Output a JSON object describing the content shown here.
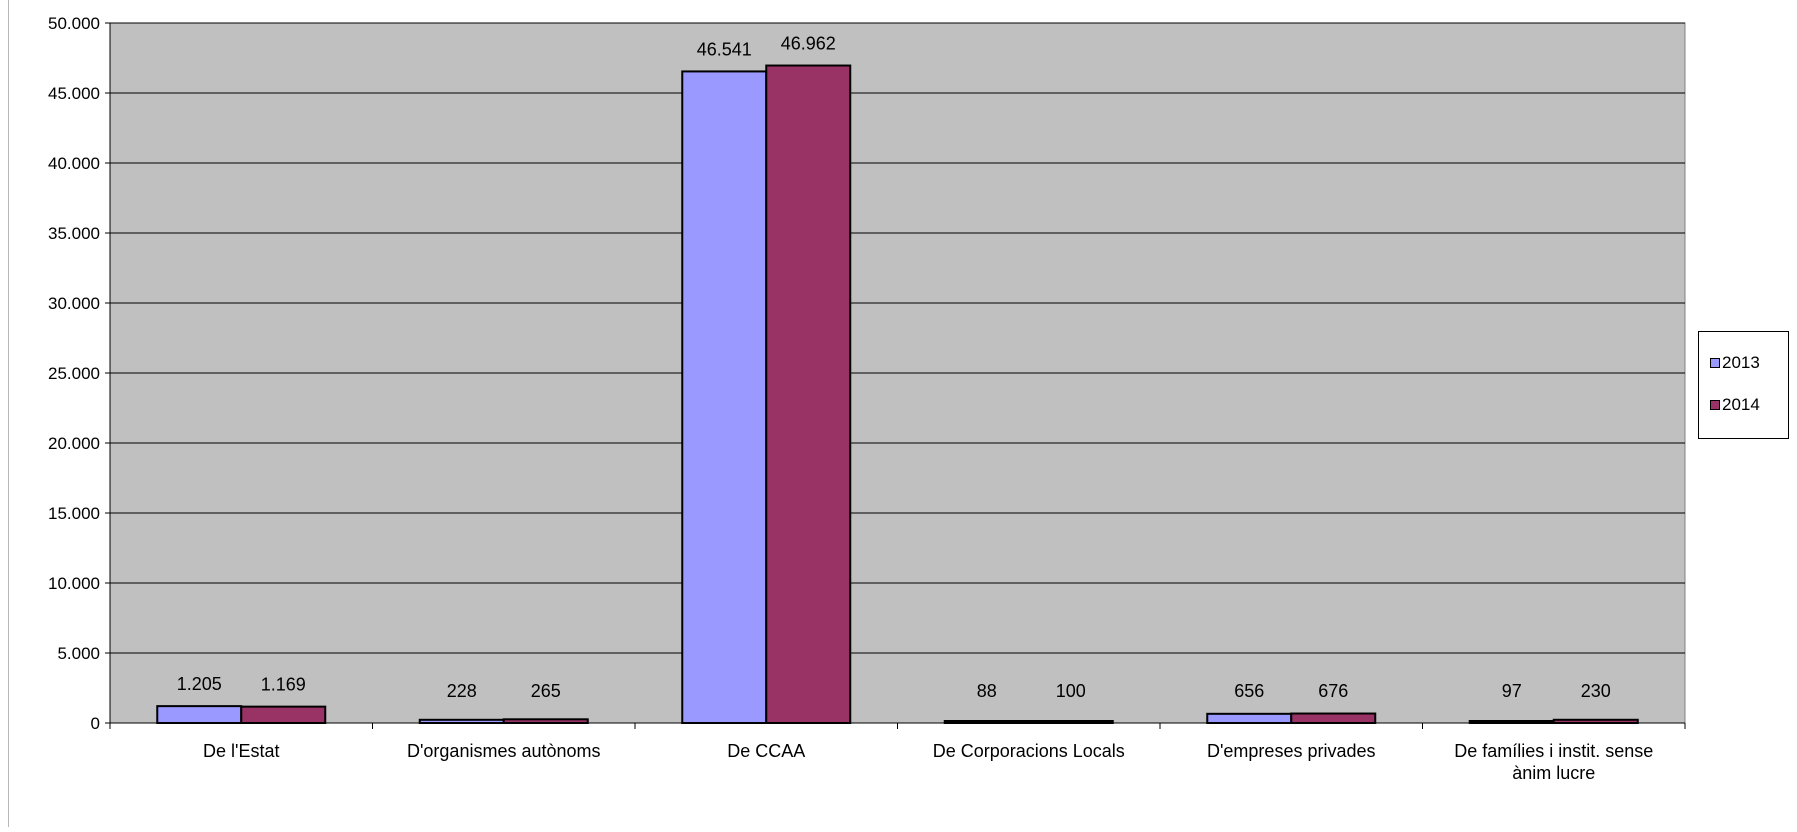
{
  "chart_data": {
    "type": "bar",
    "title": "",
    "xlabel": "",
    "ylabel": "",
    "ylim": [
      0,
      50000
    ],
    "yticks": [
      0,
      5000,
      10000,
      15000,
      20000,
      25000,
      30000,
      35000,
      40000,
      45000,
      50000
    ],
    "ytick_labels": [
      "0",
      "5.000",
      "10.000",
      "15.000",
      "20.000",
      "25.000",
      "30.000",
      "35.000",
      "40.000",
      "45.000",
      "50.000"
    ],
    "grid": true,
    "legend_position": "right",
    "plot_background": "#c0c0c0",
    "categories": [
      [
        "De l'Estat"
      ],
      [
        "D'organismes autònoms"
      ],
      [
        "De CCAA"
      ],
      [
        "De Corporacions Locals"
      ],
      [
        "D'empreses privades"
      ],
      [
        "De famílies i instit. sense",
        "ànim lucre"
      ]
    ],
    "series": [
      {
        "name": "2013",
        "color": "#9999ff",
        "values": [
          1205,
          228,
          46541,
          88,
          656,
          97
        ],
        "labels": [
          "1.205",
          "228",
          "46.541",
          "88",
          "656",
          "97"
        ]
      },
      {
        "name": "2014",
        "color": "#993366",
        "values": [
          1169,
          265,
          46962,
          100,
          676,
          230
        ],
        "labels": [
          "1.169",
          "265",
          "46.962",
          "100",
          "676",
          "230"
        ]
      }
    ]
  }
}
